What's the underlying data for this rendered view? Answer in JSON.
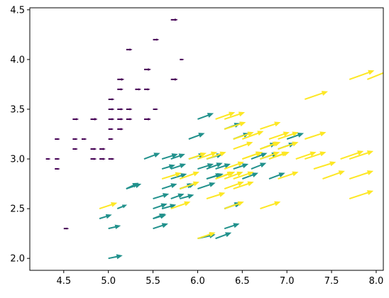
{
  "chart_data": {
    "type": "quiver",
    "title": "",
    "xlabel": "",
    "ylabel": "",
    "xlim": [
      4.12,
      8.08
    ],
    "ylim": [
      1.88,
      4.52
    ],
    "x_ticks": [
      "4.5",
      "5.0",
      "5.5",
      "6.0",
      "6.5",
      "7.0",
      "7.5",
      "8.0"
    ],
    "y_ticks": [
      "2.0",
      "2.5",
      "3.0",
      "3.5",
      "4.0",
      "4.5"
    ],
    "grid": false,
    "legend": "none",
    "colormap": "viridis",
    "series": [
      {
        "color": "#440154",
        "points": [
          [
            4.3,
            3.0,
            0.054,
            0
          ],
          [
            4.4,
            2.9,
            0.06,
            0
          ],
          [
            4.4,
            3.0,
            0.06,
            0
          ],
          [
            4.4,
            3.2,
            0.06,
            0
          ],
          [
            4.5,
            2.3,
            0.06,
            0
          ],
          [
            4.6,
            3.1,
            0.06,
            0
          ],
          [
            4.6,
            3.2,
            0.06,
            0
          ],
          [
            4.6,
            3.4,
            0.07,
            0
          ],
          [
            4.7,
            3.2,
            0.06,
            0
          ],
          [
            4.8,
            3.0,
            0.07,
            0
          ],
          [
            4.8,
            3.1,
            0.07,
            0
          ],
          [
            4.8,
            3.4,
            0.08,
            0
          ],
          [
            4.9,
            3.0,
            0.07,
            0
          ],
          [
            4.9,
            3.1,
            0.07,
            0
          ],
          [
            5.0,
            3.0,
            0.07,
            0
          ],
          [
            5.0,
            3.2,
            0.06,
            0
          ],
          [
            5.0,
            3.3,
            0.06,
            0
          ],
          [
            5.0,
            3.4,
            0.07,
            0
          ],
          [
            5.0,
            3.5,
            0.07,
            0
          ],
          [
            5.0,
            3.6,
            0.07,
            0
          ],
          [
            5.1,
            3.3,
            0.07,
            0
          ],
          [
            5.1,
            3.4,
            0.07,
            0
          ],
          [
            5.1,
            3.5,
            0.07,
            0
          ],
          [
            5.1,
            3.7,
            0.07,
            0
          ],
          [
            5.1,
            3.8,
            0.08,
            0
          ],
          [
            5.2,
            3.4,
            0.07,
            0
          ],
          [
            5.2,
            3.5,
            0.07,
            0
          ],
          [
            5.2,
            4.1,
            0.07,
            0
          ],
          [
            5.3,
            3.7,
            0.07,
            0
          ],
          [
            5.4,
            3.4,
            0.08,
            0
          ],
          [
            5.4,
            3.7,
            0.07,
            0
          ],
          [
            5.4,
            3.9,
            0.08,
            0
          ],
          [
            5.5,
            3.5,
            0.06,
            0
          ],
          [
            5.5,
            4.2,
            0.07,
            0
          ],
          [
            5.7,
            3.8,
            0.08,
            0
          ],
          [
            5.7,
            4.4,
            0.08,
            0
          ],
          [
            5.8,
            4.0,
            0.05,
            0
          ]
        ]
      },
      {
        "color": "#21918c",
        "points": [
          [
            5.0,
            2.0,
            0.16,
            0.03
          ],
          [
            4.9,
            2.4,
            0.14,
            0.04
          ],
          [
            5.0,
            2.3,
            0.14,
            0.03
          ],
          [
            5.1,
            2.5,
            0.11,
            0.04
          ],
          [
            5.2,
            2.7,
            0.17,
            0.05
          ],
          [
            5.5,
            2.3,
            0.17,
            0.05
          ],
          [
            5.5,
            2.4,
            0.15,
            0.04
          ],
          [
            5.5,
            2.5,
            0.16,
            0.05
          ],
          [
            5.5,
            2.6,
            0.18,
            0.05
          ],
          [
            5.6,
            2.5,
            0.16,
            0.04
          ],
          [
            5.6,
            2.7,
            0.17,
            0.05
          ],
          [
            5.6,
            2.9,
            0.15,
            0.04
          ],
          [
            5.6,
            3.0,
            0.18,
            0.05
          ],
          [
            5.7,
            2.6,
            0.15,
            0.05
          ],
          [
            5.7,
            2.8,
            0.18,
            0.05
          ],
          [
            5.7,
            2.9,
            0.17,
            0.05
          ],
          [
            5.7,
            3.0,
            0.16,
            0.05
          ],
          [
            5.8,
            2.6,
            0.16,
            0.04
          ],
          [
            5.8,
            2.7,
            0.17,
            0.05
          ],
          [
            5.9,
            3.0,
            0.18,
            0.05
          ],
          [
            6.0,
            2.2,
            0.2,
            0.04
          ],
          [
            6.0,
            2.7,
            0.2,
            0.06
          ],
          [
            6.0,
            2.9,
            0.18,
            0.05
          ],
          [
            6.0,
            3.4,
            0.18,
            0.06
          ],
          [
            6.1,
            2.8,
            0.19,
            0.05
          ],
          [
            6.1,
            2.9,
            0.18,
            0.06
          ],
          [
            6.1,
            3.0,
            0.18,
            0.05
          ],
          [
            6.2,
            2.2,
            0.18,
            0.06
          ],
          [
            6.2,
            2.9,
            0.17,
            0.05
          ],
          [
            6.3,
            2.3,
            0.17,
            0.05
          ],
          [
            6.3,
            2.5,
            0.19,
            0.06
          ],
          [
            6.3,
            3.3,
            0.18,
            0.06
          ],
          [
            6.4,
            2.9,
            0.17,
            0.05
          ],
          [
            6.4,
            3.2,
            0.18,
            0.06
          ],
          [
            6.5,
            2.8,
            0.18,
            0.06
          ],
          [
            6.6,
            2.9,
            0.17,
            0.06
          ],
          [
            6.6,
            3.0,
            0.18,
            0.06
          ],
          [
            6.7,
            3.0,
            0.2,
            0.06
          ],
          [
            6.7,
            3.1,
            0.18,
            0.06
          ],
          [
            6.8,
            2.8,
            0.18,
            0.06
          ],
          [
            6.9,
            3.1,
            0.19,
            0.06
          ],
          [
            7.0,
            3.2,
            0.19,
            0.06
          ],
          [
            5.4,
            3.0,
            0.18,
            0.06
          ],
          [
            5.2,
            2.7,
            0.14,
            0.06
          ],
          [
            5.9,
            3.2,
            0.18,
            0.06
          ],
          [
            6.3,
            2.5,
            0.18,
            0.06
          ],
          [
            5.8,
            2.7,
            0.15,
            0.05
          ],
          [
            6.1,
            2.8,
            0.17,
            0.05
          ],
          [
            5.5,
            2.4,
            0.14,
            0.05
          ]
        ]
      },
      {
        "color": "#fde725",
        "points": [
          [
            4.9,
            2.5,
            0.2,
            0.06
          ],
          [
            5.6,
            2.8,
            0.22,
            0.06
          ],
          [
            5.7,
            2.5,
            0.22,
            0.07
          ],
          [
            5.8,
            2.7,
            0.22,
            0.07
          ],
          [
            5.8,
            2.8,
            0.22,
            0.07
          ],
          [
            6.0,
            2.2,
            0.2,
            0.06
          ],
          [
            6.0,
            3.0,
            0.22,
            0.07
          ],
          [
            6.1,
            2.6,
            0.21,
            0.06
          ],
          [
            6.1,
            3.0,
            0.22,
            0.07
          ],
          [
            6.2,
            2.8,
            0.22,
            0.07
          ],
          [
            6.2,
            3.4,
            0.22,
            0.07
          ],
          [
            6.3,
            2.5,
            0.22,
            0.07
          ],
          [
            6.3,
            2.7,
            0.22,
            0.07
          ],
          [
            6.3,
            2.8,
            0.21,
            0.07
          ],
          [
            6.3,
            2.9,
            0.22,
            0.07
          ],
          [
            6.3,
            3.3,
            0.24,
            0.07
          ],
          [
            6.3,
            3.4,
            0.23,
            0.07
          ],
          [
            6.4,
            2.7,
            0.23,
            0.07
          ],
          [
            6.4,
            2.8,
            0.23,
            0.07
          ],
          [
            6.4,
            3.1,
            0.22,
            0.07
          ],
          [
            6.4,
            3.2,
            0.23,
            0.07
          ],
          [
            6.5,
            3.0,
            0.23,
            0.07
          ],
          [
            6.5,
            3.2,
            0.24,
            0.08
          ],
          [
            6.7,
            2.5,
            0.23,
            0.07
          ],
          [
            6.7,
            3.0,
            0.22,
            0.07
          ],
          [
            6.7,
            3.1,
            0.23,
            0.07
          ],
          [
            6.7,
            3.3,
            0.23,
            0.07
          ],
          [
            6.8,
            3.0,
            0.23,
            0.07
          ],
          [
            6.8,
            3.2,
            0.23,
            0.07
          ],
          [
            6.9,
            3.1,
            0.23,
            0.07
          ],
          [
            6.9,
            3.2,
            0.23,
            0.07
          ],
          [
            7.1,
            3.0,
            0.23,
            0.07
          ],
          [
            7.2,
            3.0,
            0.24,
            0.07
          ],
          [
            7.2,
            3.2,
            0.24,
            0.07
          ],
          [
            7.2,
            3.6,
            0.26,
            0.08
          ],
          [
            7.3,
            2.9,
            0.25,
            0.07
          ],
          [
            7.4,
            2.8,
            0.25,
            0.08
          ],
          [
            7.6,
            3.0,
            0.26,
            0.08
          ],
          [
            7.7,
            2.6,
            0.27,
            0.08
          ],
          [
            7.7,
            2.8,
            0.27,
            0.08
          ],
          [
            7.7,
            3.0,
            0.27,
            0.08
          ],
          [
            7.7,
            3.8,
            0.28,
            0.09
          ],
          [
            7.9,
            3.8,
            0.25,
            0.09
          ],
          [
            6.9,
            2.8,
            0.23,
            0.07
          ],
          [
            6.5,
            3.0,
            0.22,
            0.07
          ],
          [
            6.2,
            2.8,
            0.2,
            0.07
          ],
          [
            5.9,
            3.0,
            0.2,
            0.06
          ],
          [
            6.7,
            3.1,
            0.21,
            0.07
          ],
          [
            6.8,
            3.0,
            0.21,
            0.07
          ]
        ]
      }
    ]
  }
}
